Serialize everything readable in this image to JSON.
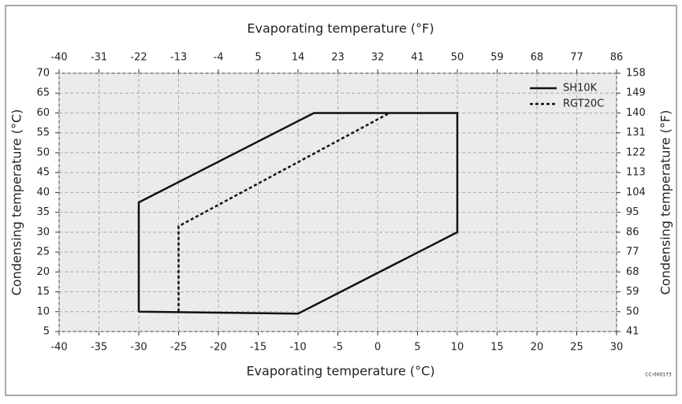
{
  "chart_data": {
    "type": "line",
    "xlabel": "Evaporating temperature (°C)",
    "x2label": "Evaporating temperature (°F)",
    "ylabel": "Condensing temperature (°C)",
    "y2label": "Condensing temperature (°F)",
    "note": "CC-000173",
    "xlim": [
      -40,
      30
    ],
    "xticks": [
      -40,
      -35,
      -30,
      -25,
      -20,
      -15,
      -10,
      -5,
      0,
      5,
      10,
      15,
      20,
      25,
      30
    ],
    "x2lim": [
      -40,
      86
    ],
    "x2ticks": [
      -40,
      -31,
      -22,
      -13,
      -4,
      5,
      14,
      23,
      32,
      41,
      50,
      59,
      68,
      77,
      86
    ],
    "ylim": [
      5,
      70
    ],
    "yticks": [
      5,
      10,
      15,
      20,
      25,
      30,
      35,
      40,
      45,
      50,
      55,
      60,
      65,
      70
    ],
    "y2lim": [
      41,
      158
    ],
    "y2ticks": [
      41,
      50,
      59,
      68,
      77,
      86,
      95,
      104,
      113,
      122,
      131,
      140,
      149,
      158
    ],
    "grid": true,
    "legend": "upper right",
    "series": [
      {
        "name": "SH10K",
        "color": "#111111",
        "dash": "solid",
        "x": [
          -30,
          -30,
          -8,
          10,
          10,
          -10,
          -30
        ],
        "values": [
          10,
          37.5,
          60,
          60,
          30,
          9.5,
          10
        ]
      },
      {
        "name": "RGT20C",
        "color": "#111111",
        "dash": "dashed",
        "x": [
          -25,
          -25,
          1.5
        ],
        "values": [
          10,
          31.5,
          60
        ]
      }
    ]
  }
}
